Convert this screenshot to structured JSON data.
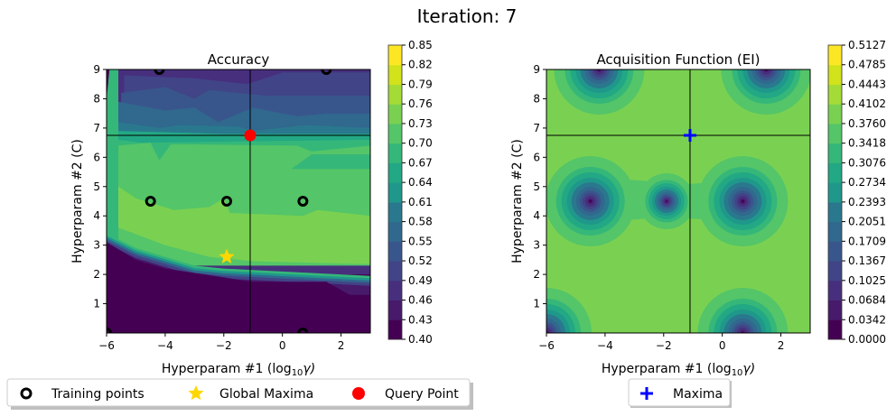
{
  "suptitle": "Iteration: 7",
  "viridis": [
    "#440154",
    "#481a6c",
    "#472f7d",
    "#414487",
    "#39568c",
    "#31688e",
    "#2a788e",
    "#23888e",
    "#1f988b",
    "#22a884",
    "#35b779",
    "#54c568",
    "#7ad151",
    "#a5db36",
    "#d2e21b",
    "#fde725"
  ],
  "chart_data": [
    {
      "type": "heatmap",
      "title": "Accuracy",
      "xlabel": "Hyperparam #1 (log",
      "xlabel_sub": "10",
      "xlabel_sym": "γ)",
      "ylabel": "Hyperparam #2 (C)",
      "xlim": [
        -6,
        3
      ],
      "ylim": [
        0,
        9
      ],
      "xticks": [
        -6,
        -4,
        -2,
        0,
        2
      ],
      "xtick_labels": [
        "−6",
        "−4",
        "−2",
        "0",
        "2"
      ],
      "yticks": [
        1,
        2,
        3,
        4,
        5,
        6,
        7,
        8,
        9
      ],
      "ytick_labels": [
        "1",
        "2",
        "3",
        "4",
        "5",
        "6",
        "7",
        "8",
        "9"
      ],
      "colorbar_ticks": [
        "0.40",
        "0.43",
        "0.46",
        "0.49",
        "0.52",
        "0.55",
        "0.58",
        "0.61",
        "0.64",
        "0.67",
        "0.70",
        "0.73",
        "0.76",
        "0.79",
        "0.82",
        "0.85"
      ],
      "crosshair": {
        "x": -1.1,
        "y": 6.75
      },
      "training_points": [
        [
          -4.2,
          9.0
        ],
        [
          1.5,
          9.0
        ],
        [
          -4.5,
          4.5
        ],
        [
          -1.9,
          4.5
        ],
        [
          0.7,
          4.5
        ],
        [
          -6.0,
          0.0
        ],
        [
          0.7,
          0.0
        ]
      ],
      "global_maxima": [
        -1.9,
        2.6
      ],
      "query_point": [
        -1.1,
        6.75
      ],
      "legend": {
        "placement": "bottom",
        "entries": [
          {
            "label": "Training points",
            "marker": "ring",
            "color": "#000000"
          },
          {
            "label": "Global Maxima",
            "marker": "star",
            "color": "#ffd700"
          },
          {
            "label": "Query Point",
            "marker": "dot",
            "color": "#ff0000"
          }
        ]
      }
    },
    {
      "type": "heatmap",
      "title": "Acquisition Function (EI)",
      "xlabel": "Hyperparam #1 (log",
      "xlabel_sub": "10",
      "xlabel_sym": "γ)",
      "ylabel": "Hyperparam #2 (C)",
      "xlim": [
        -6,
        3
      ],
      "ylim": [
        0,
        9
      ],
      "xticks": [
        -6,
        -4,
        -2,
        0,
        2
      ],
      "xtick_labels": [
        "−6",
        "−4",
        "−2",
        "0",
        "2"
      ],
      "yticks": [
        1,
        2,
        3,
        4,
        5,
        6,
        7,
        8,
        9
      ],
      "ytick_labels": [
        "1",
        "2",
        "3",
        "4",
        "5",
        "6",
        "7",
        "8",
        "9"
      ],
      "colorbar_ticks": [
        "0.0000",
        "0.0342",
        "0.0684",
        "0.1025",
        "0.1367",
        "0.1709",
        "0.2051",
        "0.2393",
        "0.2734",
        "0.3076",
        "0.3418",
        "0.3760",
        "0.4102",
        "0.4443",
        "0.4785",
        "0.5127"
      ],
      "crosshair": {
        "x": -1.1,
        "y": 6.75
      },
      "minima_centers": [
        [
          -4.2,
          9.0
        ],
        [
          1.5,
          9.0
        ],
        [
          -4.5,
          4.5
        ],
        [
          -1.9,
          4.5
        ],
        [
          0.7,
          4.5
        ],
        [
          -6.0,
          0.0
        ],
        [
          0.7,
          0.0
        ]
      ],
      "maxima": [
        -1.1,
        6.75
      ],
      "legend": {
        "placement": "bottom",
        "entries": [
          {
            "label": "Maxima",
            "marker": "plus",
            "color": "#0000ff"
          }
        ]
      }
    }
  ]
}
